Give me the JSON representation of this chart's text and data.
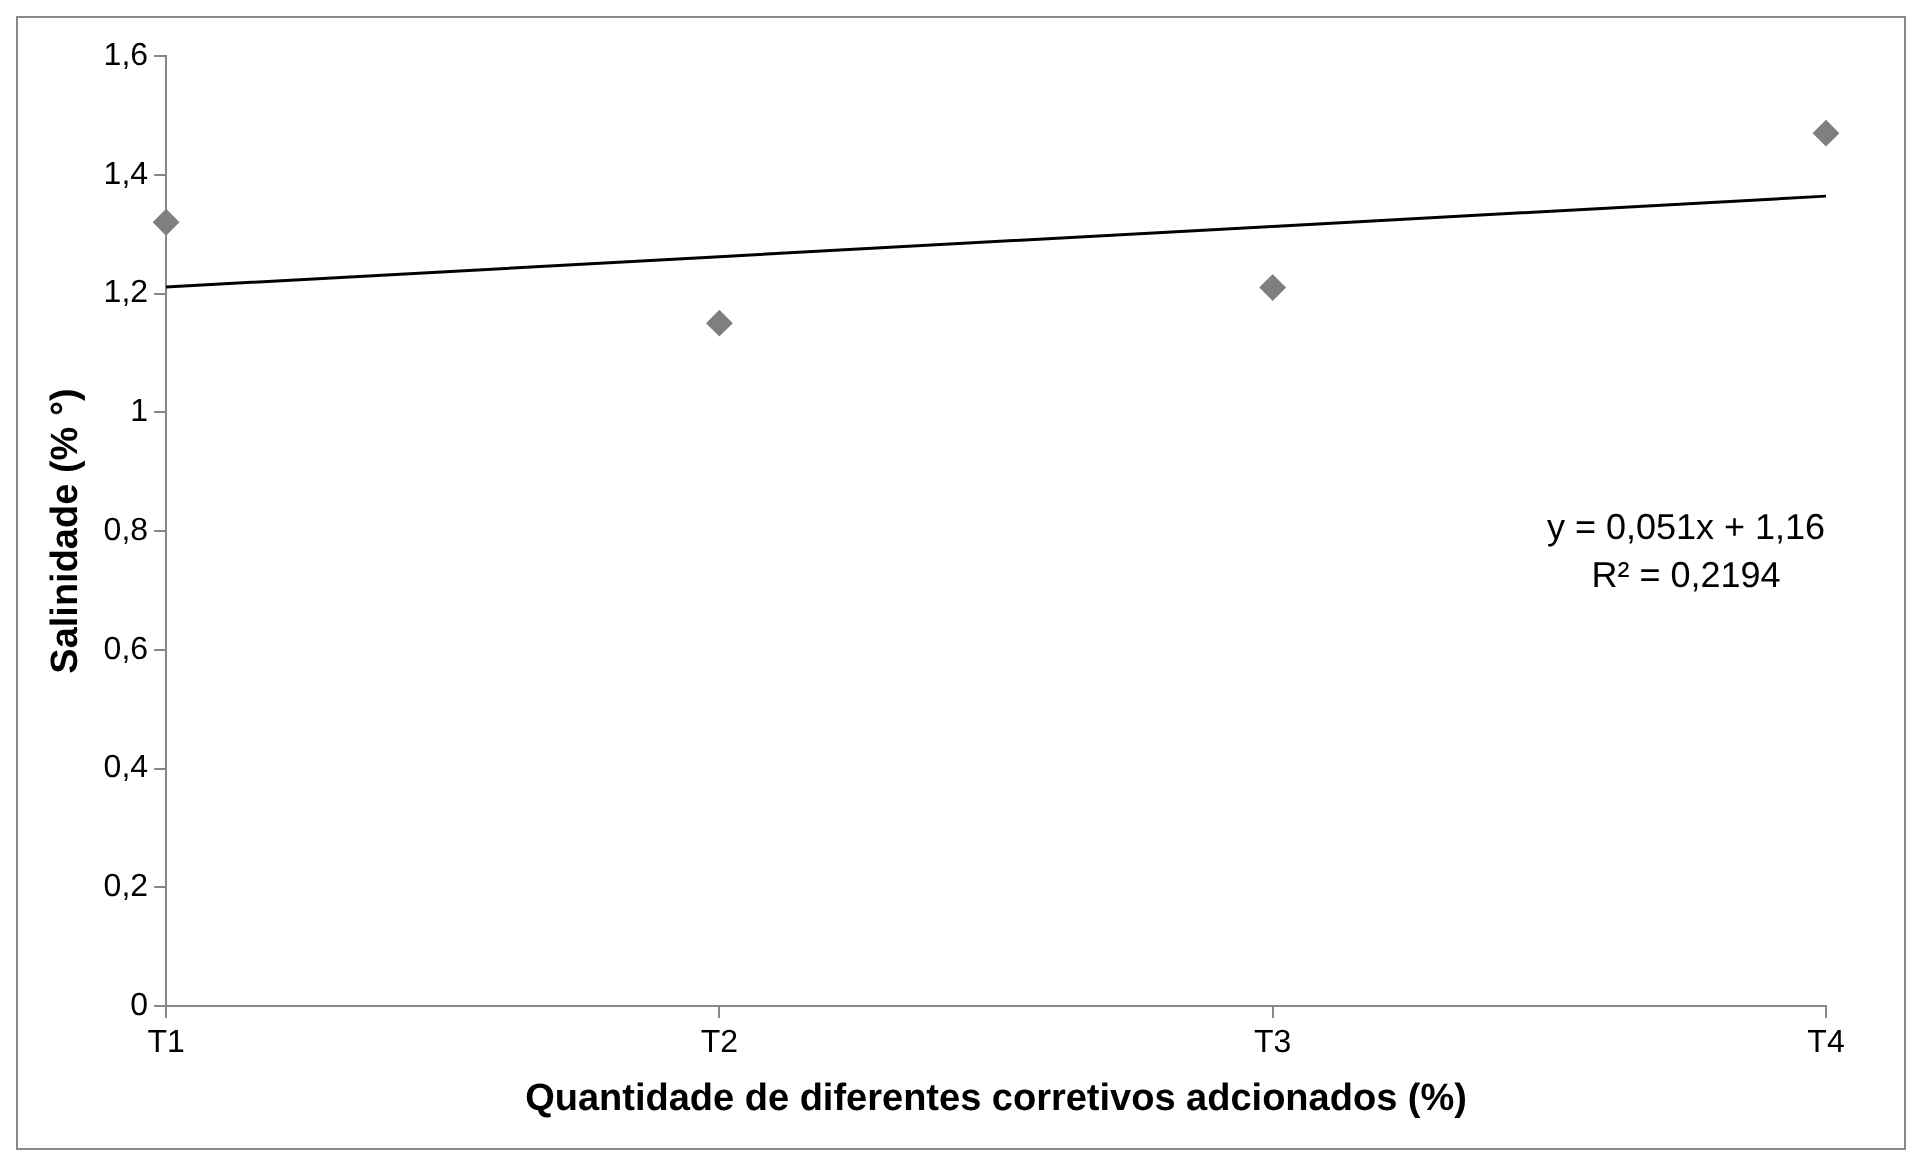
{
  "chart_data": {
    "type": "scatter",
    "xlabel": "Quantidade de diferentes corretivos adcionados (%)",
    "ylabel": "Salinidade (% °)",
    "categories": [
      "T1",
      "T2",
      "T3",
      "T4"
    ],
    "series": [
      {
        "type": "scatter",
        "color": "#7f7f7f",
        "x": [
          "T1",
          "T2",
          "T3",
          "T4"
        ],
        "values": [
          1.32,
          1.15,
          1.21,
          1.47
        ],
        "marker": "diamond"
      },
      {
        "type": "line",
        "color": "#000000",
        "x": [
          "T1",
          "T2",
          "T3",
          "T4"
        ],
        "values": [
          1.211,
          1.262,
          1.313,
          1.364
        ],
        "marker": "none",
        "line_style": "solid"
      }
    ],
    "ylim": [
      0,
      1.6
    ],
    "yticks": [
      0,
      {
        "value": 0.2,
        "label": "0,2"
      },
      {
        "value": 0.4,
        "label": "0,4"
      },
      {
        "value": 0.6,
        "label": "0,6"
      },
      {
        "value": 0.8,
        "label": "0,8"
      },
      1,
      {
        "value": 1.2,
        "label": "1,2"
      },
      {
        "value": 1.4,
        "label": "1,4"
      },
      {
        "value": 1.6,
        "label": "1,6"
      }
    ],
    "annotations": [
      "y = 0,051x + 1,16",
      "R² = 0,2194"
    ],
    "grid": false,
    "legend": false
  }
}
